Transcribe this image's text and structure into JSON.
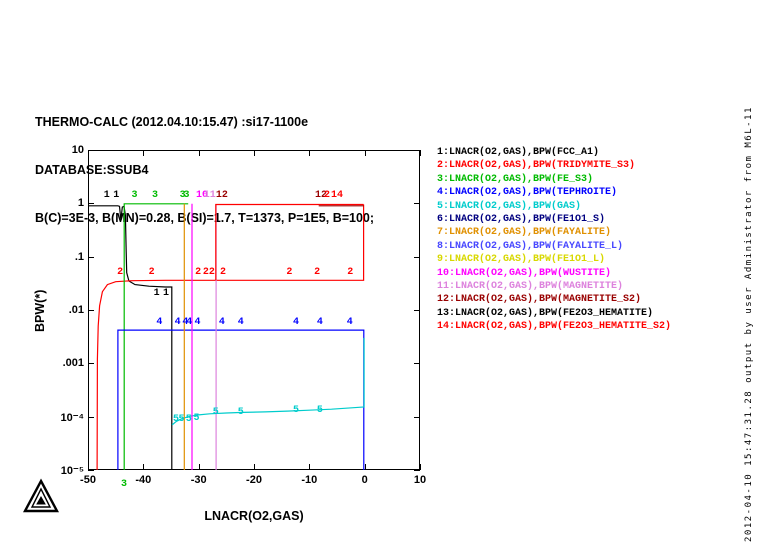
{
  "header": {
    "line1": "THERMO-CALC (2012.04.10:15.47) :si17-1100e",
    "line2": "DATABASE:SSUB4",
    "line3": "B(C)=3E-3, B(MN)=0.28, B(SI)=1.7, T=1373, P=1E5, B=100;"
  },
  "sidebar_note": "2012-04-10 15:47:31.28 output by user Administrator from M6L-11",
  "chart_data": {
    "type": "line",
    "title": "",
    "xlabel": "LNACR(O2,GAS)",
    "ylabel": "BPW(*)",
    "grid": false,
    "legend_position": "right",
    "x_axis": {
      "min": -50,
      "max": 10,
      "ticks": [
        -50,
        -40,
        -30,
        -20,
        -10,
        0,
        10
      ]
    },
    "y_axis": {
      "scale": "log",
      "min": 1e-05,
      "max": 10,
      "tick_labels": [
        "10",
        "1",
        ".1",
        ".01",
        ".001",
        "10⁻⁴",
        "10⁻⁵"
      ],
      "tick_values": [
        10,
        1,
        0.1,
        0.01,
        0.001,
        0.0001,
        1e-05
      ]
    },
    "series": [
      {
        "id": 1,
        "name": "FCC_A1",
        "legend": "1:LNACR(O2,GAS),BPW(FCC_A1)",
        "color": "#000000",
        "points": [
          [
            -50,
            0.9
          ],
          [
            -44.6,
            0.9
          ],
          [
            -44.3,
            0.88
          ],
          [
            -44.05,
            0.48
          ],
          [
            -43.8,
            0.85
          ],
          [
            -43.5,
            0.88
          ],
          [
            -43.25,
            0.6
          ],
          [
            -43.1,
            0.12
          ],
          [
            -43.0,
            0.05
          ],
          [
            -42.6,
            0.035
          ],
          [
            -41.5,
            0.03
          ],
          [
            -39,
            0.028
          ],
          [
            -36,
            0.027
          ],
          [
            -34.85,
            0.027
          ],
          [
            -34.85,
            1e-05
          ]
        ]
      },
      {
        "id": 2,
        "name": "TRIDYMITE_S3",
        "legend": "2:LNACR(O2,GAS),BPW(TRIDYMITE_S3)",
        "color": "#ff0000",
        "points": [
          [
            -48.35,
            1e-05
          ],
          [
            -48.3,
            0.0012
          ],
          [
            -48.15,
            0.005
          ],
          [
            -47.9,
            0.012
          ],
          [
            -47.4,
            0.022
          ],
          [
            -46.5,
            0.03
          ],
          [
            -45,
            0.034
          ],
          [
            -42,
            0.0355
          ],
          [
            -36,
            0.036
          ],
          [
            -30,
            0.036
          ],
          [
            -24,
            0.036
          ],
          [
            -18,
            0.036
          ],
          [
            -12,
            0.036
          ],
          [
            -6,
            0.036
          ],
          [
            -0.2,
            0.036
          ],
          [
            -0.2,
            0.95
          ]
        ]
      },
      {
        "id": 3,
        "name": "FE_S3",
        "legend": "3:LNACR(O2,GAS),BPW(FE_S3)",
        "color": "#00bb00",
        "points": [
          [
            -43.45,
            1e-05
          ],
          [
            -43.45,
            0.98
          ],
          [
            -40,
            0.98
          ],
          [
            -36,
            0.98
          ],
          [
            -31.9,
            0.98
          ]
        ]
      },
      {
        "id": 4,
        "name": "TEPHROITE",
        "legend": "4:LNACR(O2,GAS),BPW(TEPHROITE)",
        "color": "#0000ff",
        "points": [
          [
            -44.6,
            1e-05
          ],
          [
            -44.6,
            0.0042
          ],
          [
            -40,
            0.0042
          ],
          [
            -30,
            0.0042
          ],
          [
            -20,
            0.0042
          ],
          [
            -10,
            0.0042
          ],
          [
            -0.15,
            0.0042
          ],
          [
            -0.15,
            1e-05
          ]
        ]
      },
      {
        "id": 5,
        "name": "GAS",
        "legend": "5:LNACR(O2,GAS),BPW(GAS)",
        "color": "#00cccc",
        "points": [
          [
            -34.8,
            7e-05
          ],
          [
            -34,
            8.2e-05
          ],
          [
            -33,
            9.2e-05
          ],
          [
            -31.5,
            0.000102
          ],
          [
            -30,
            0.000108
          ],
          [
            -28,
            0.000113
          ],
          [
            -25,
            0.000117
          ],
          [
            -22,
            0.00012
          ],
          [
            -18,
            0.000123
          ],
          [
            -14,
            0.000127
          ],
          [
            -10,
            0.000132
          ],
          [
            -6,
            0.000138
          ],
          [
            -2,
            0.000147
          ],
          [
            -0.1,
            0.000152
          ],
          [
            -0.1,
            0.003
          ]
        ]
      },
      {
        "id": 6,
        "name": "FE1O1_S",
        "legend": "6:LNACR(O2,GAS),BPW(FE1O1_S)",
        "color": "#000080",
        "points": []
      },
      {
        "id": 7,
        "name": "FAYALITE",
        "legend": "7:LNACR(O2,GAS),BPW(FAYALITE)",
        "color": "#e09000",
        "points": [
          [
            -32.6,
            1e-05
          ],
          [
            -32.6,
            0.98
          ]
        ]
      },
      {
        "id": 8,
        "name": "FAYALITE_L",
        "legend": "8:LNACR(O2,GAS),BPW(FAYALITE_L)",
        "color": "#4848ff",
        "points": []
      },
      {
        "id": 9,
        "name": "FE1O1_L",
        "legend": "9:LNACR(O2,GAS),BPW(FE1O1_L)",
        "color": "#d8d800",
        "points": []
      },
      {
        "id": 10,
        "name": "WUSTITE",
        "legend": "10:LNACR(O2,GAS),BPW(WUSTITE)",
        "color": "#ff00ff",
        "points": [
          [
            -31.2,
            1e-05
          ],
          [
            -31.2,
            0.98
          ]
        ]
      },
      {
        "id": 11,
        "name": "MAGNETITE",
        "legend": "11:LNACR(O2,GAS),BPW(MAGNETITE)",
        "color": "#dd82dd",
        "points": [
          [
            -26.85,
            1e-05
          ],
          [
            -26.85,
            0.95
          ]
        ]
      },
      {
        "id": 12,
        "name": "MAGNETITE_S2",
        "legend": "12:LNACR(O2,GAS),BPW(MAGNETITE_S2)",
        "color": "#990000",
        "points": [
          [
            -8.3,
            0.9
          ],
          [
            -0.2,
            0.9
          ]
        ]
      },
      {
        "id": 13,
        "name": "FE2O3_HEMATITE",
        "legend": "13:LNACR(O2,GAS),BPW(FE2O3_HEMATITE)",
        "color": "#000000",
        "points": []
      },
      {
        "id": 14,
        "name": "FE2O3_HEMATITE_S2",
        "legend": "14:LNACR(O2,GAS),BPW(FE2O3_HEMATITE_S2)",
        "color": "#ff0000",
        "points": [
          [
            -26.9,
            0.036
          ],
          [
            -26.9,
            0.95
          ],
          [
            -0.2,
            0.95
          ]
        ]
      }
    ],
    "curve_labels": [
      {
        "t": "1",
        "x": -46.6,
        "v": 1.4,
        "c": "#000000"
      },
      {
        "t": "1",
        "x": -44.9,
        "v": 1.4,
        "c": "#000000"
      },
      {
        "t": "1",
        "x": -37.6,
        "v": 0.02,
        "c": "#000000"
      },
      {
        "t": "1",
        "x": -35.9,
        "v": 0.02,
        "c": "#000000"
      },
      {
        "t": "2",
        "x": -44.2,
        "v": 0.05,
        "c": "#ff0000"
      },
      {
        "t": "2",
        "x": -38.5,
        "v": 0.05,
        "c": "#ff0000"
      },
      {
        "t": "2",
        "x": -30.1,
        "v": 0.05,
        "c": "#ff0000"
      },
      {
        "t": "2",
        "x": -28.7,
        "v": 0.05,
        "c": "#ff0000"
      },
      {
        "t": "2",
        "x": -27.6,
        "v": 0.05,
        "c": "#ff0000"
      },
      {
        "t": "2",
        "x": -25.6,
        "v": 0.05,
        "c": "#ff0000"
      },
      {
        "t": "2",
        "x": -13.6,
        "v": 0.05,
        "c": "#ff0000"
      },
      {
        "t": "2",
        "x": -8.6,
        "v": 0.05,
        "c": "#ff0000"
      },
      {
        "t": "2",
        "x": -2.6,
        "v": 0.05,
        "c": "#ff0000"
      },
      {
        "t": "3",
        "x": -41.6,
        "v": 1.35,
        "c": "#00bb00"
      },
      {
        "t": "3",
        "x": -37.9,
        "v": 1.35,
        "c": "#00bb00"
      },
      {
        "t": "3",
        "x": -32.9,
        "v": 1.35,
        "c": "#00bb00"
      },
      {
        "t": "3",
        "x": -32.2,
        "v": 1.35,
        "c": "#00bb00"
      },
      {
        "t": "3",
        "x": -43.5,
        "v": 5.2e-06,
        "c": "#00bb00"
      },
      {
        "t": "4",
        "x": -37.1,
        "v": 0.0058,
        "c": "#0000ff"
      },
      {
        "t": "4",
        "x": -33.8,
        "v": 0.0058,
        "c": "#0000ff"
      },
      {
        "t": "4",
        "x": -32.4,
        "v": 0.0058,
        "c": "#0000ff"
      },
      {
        "t": "4",
        "x": -31.7,
        "v": 0.0058,
        "c": "#0000ff"
      },
      {
        "t": "4",
        "x": -30.2,
        "v": 0.0058,
        "c": "#0000ff"
      },
      {
        "t": "4",
        "x": -25.8,
        "v": 0.0058,
        "c": "#0000ff"
      },
      {
        "t": "4",
        "x": -22.4,
        "v": 0.0058,
        "c": "#0000ff"
      },
      {
        "t": "4",
        "x": -12.4,
        "v": 0.0058,
        "c": "#0000ff"
      },
      {
        "t": "4",
        "x": -8.1,
        "v": 0.0058,
        "c": "#0000ff"
      },
      {
        "t": "4",
        "x": -2.7,
        "v": 0.0058,
        "c": "#0000ff"
      },
      {
        "t": "5",
        "x": -34.1,
        "v": 8.8e-05,
        "c": "#00cccc"
      },
      {
        "t": "5",
        "x": -33.1,
        "v": 8.8e-05,
        "c": "#00cccc"
      },
      {
        "t": "5",
        "x": -31.8,
        "v": 8.8e-05,
        "c": "#00cccc"
      },
      {
        "t": "5",
        "x": -30.4,
        "v": 9.2e-05,
        "c": "#00cccc"
      },
      {
        "t": "5",
        "x": -26.9,
        "v": 0.000115,
        "c": "#00cccc"
      },
      {
        "t": "5",
        "x": -22.4,
        "v": 0.000115,
        "c": "#00cccc"
      },
      {
        "t": "5",
        "x": -12.4,
        "v": 0.000125,
        "c": "#00cccc"
      },
      {
        "t": "5",
        "x": -8.1,
        "v": 0.000125,
        "c": "#00cccc"
      },
      {
        "t": "10",
        "x": -29.4,
        "v": 1.4,
        "c": "#ff00ff"
      },
      {
        "t": "11",
        "x": -28.0,
        "v": 1.4,
        "c": "#dd82dd"
      },
      {
        "t": "12",
        "x": -25.8,
        "v": 1.4,
        "c": "#990000"
      },
      {
        "t": "12",
        "x": -7.9,
        "v": 1.4,
        "c": "#990000"
      },
      {
        "t": "2",
        "x": -6.8,
        "v": 1.4,
        "c": "#ff0000"
      },
      {
        "t": "14",
        "x": -5.0,
        "v": 1.4,
        "c": "#ff0000"
      }
    ]
  }
}
